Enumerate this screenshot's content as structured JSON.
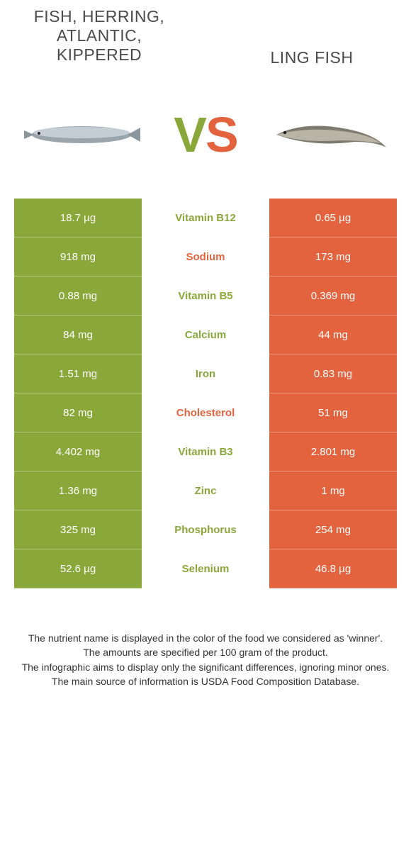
{
  "colors": {
    "left_bg": "#8aa83a",
    "right_bg": "#e2633d",
    "left_text": "#8aa83a",
    "right_text": "#e2633d",
    "body_text": "#333333"
  },
  "header": {
    "left_title": "Fish, herring, Atlantic, kippered",
    "right_title": "Ling fish",
    "vs_v": "V",
    "vs_s": "S"
  },
  "rows": [
    {
      "left": "18.7 µg",
      "name": "Vitamin B12",
      "right": "0.65 µg",
      "winner": "left"
    },
    {
      "left": "918 mg",
      "name": "Sodium",
      "right": "173 mg",
      "winner": "right"
    },
    {
      "left": "0.88 mg",
      "name": "Vitamin B5",
      "right": "0.369 mg",
      "winner": "left"
    },
    {
      "left": "84 mg",
      "name": "Calcium",
      "right": "44 mg",
      "winner": "left"
    },
    {
      "left": "1.51 mg",
      "name": "Iron",
      "right": "0.83 mg",
      "winner": "left"
    },
    {
      "left": "82 mg",
      "name": "Cholesterol",
      "right": "51 mg",
      "winner": "right"
    },
    {
      "left": "4.402 mg",
      "name": "Vitamin B3",
      "right": "2.801 mg",
      "winner": "left"
    },
    {
      "left": "1.36 mg",
      "name": "Zinc",
      "right": "1 mg",
      "winner": "left"
    },
    {
      "left": "325 mg",
      "name": "Phosphorus",
      "right": "254 mg",
      "winner": "left"
    },
    {
      "left": "52.6 µg",
      "name": "Selenium",
      "right": "46.8 µg",
      "winner": "left"
    }
  ],
  "footer": {
    "line1": "The nutrient name is displayed in the color of the food we considered as 'winner'.",
    "line2": "The amounts are specified per 100 gram of the product.",
    "line3": "The infographic aims to display only the significant differences, ignoring minor ones.",
    "line4": "The main source of information is USDA Food Composition Database."
  }
}
